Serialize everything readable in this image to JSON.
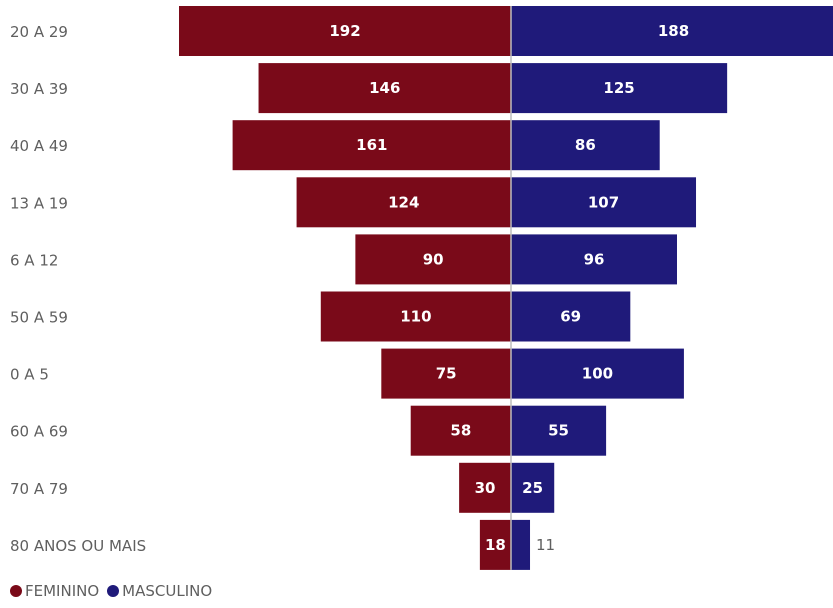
{
  "chart_data": {
    "type": "bar",
    "orientation": "horizontal-diverging",
    "categories": [
      "20 A 29",
      "30 A 39",
      "40 A 49",
      "13 A 19",
      "6 A 12",
      "50 A 59",
      "0 A 5",
      "60 A 69",
      "70 A 79",
      "80 ANOS OU MAIS"
    ],
    "series": [
      {
        "name": "FEMININO",
        "color": "#7a0a19",
        "values": [
          192,
          146,
          161,
          124,
          90,
          110,
          75,
          58,
          30,
          18
        ]
      },
      {
        "name": "MASCULINO",
        "color": "#1f1a7a",
        "values": [
          188,
          125,
          86,
          107,
          96,
          69,
          100,
          55,
          25,
          11
        ]
      }
    ],
    "xlim": [
      -192,
      192
    ],
    "legend_position": "bottom-left",
    "grid": false
  }
}
